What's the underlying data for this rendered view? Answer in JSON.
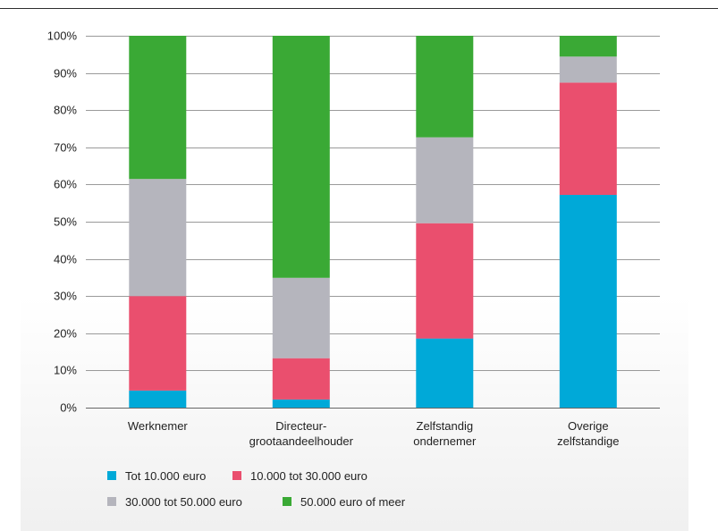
{
  "chart_data": {
    "type": "bar",
    "stacked": true,
    "title": "",
    "xlabel": "",
    "ylabel": "",
    "ylim": [
      0,
      100
    ],
    "yticks": [
      "0%",
      "10%",
      "20%",
      "30%",
      "40%",
      "50%",
      "60%",
      "70%",
      "80%",
      "90%",
      "100%"
    ],
    "grid": true,
    "legend_position": "bottom",
    "categories": [
      [
        "Werknemer"
      ],
      [
        "Directeur-",
        "grootaandeelhouder"
      ],
      [
        "Zelfstandig",
        "ondernemer"
      ],
      [
        "Overige",
        "zelfstandige"
      ]
    ],
    "series": [
      {
        "name": "Tot 10.000 euro",
        "color": "#00a9d8",
        "values": [
          4.6,
          2.2,
          18.6,
          57.2
        ]
      },
      {
        "name": "10.000 tot 30.000 euro",
        "color": "#ea4f6e",
        "values": [
          25.4,
          11.1,
          31.0,
          30.2
        ]
      },
      {
        "name": "30.000 tot 50.000 euro",
        "color": "#b5b5bd",
        "values": [
          31.5,
          21.6,
          23.1,
          7.0
        ]
      },
      {
        "name": "50.000 euro of meer",
        "color": "#3aa935",
        "values": [
          38.5,
          65.1,
          27.3,
          5.6
        ]
      }
    ]
  }
}
